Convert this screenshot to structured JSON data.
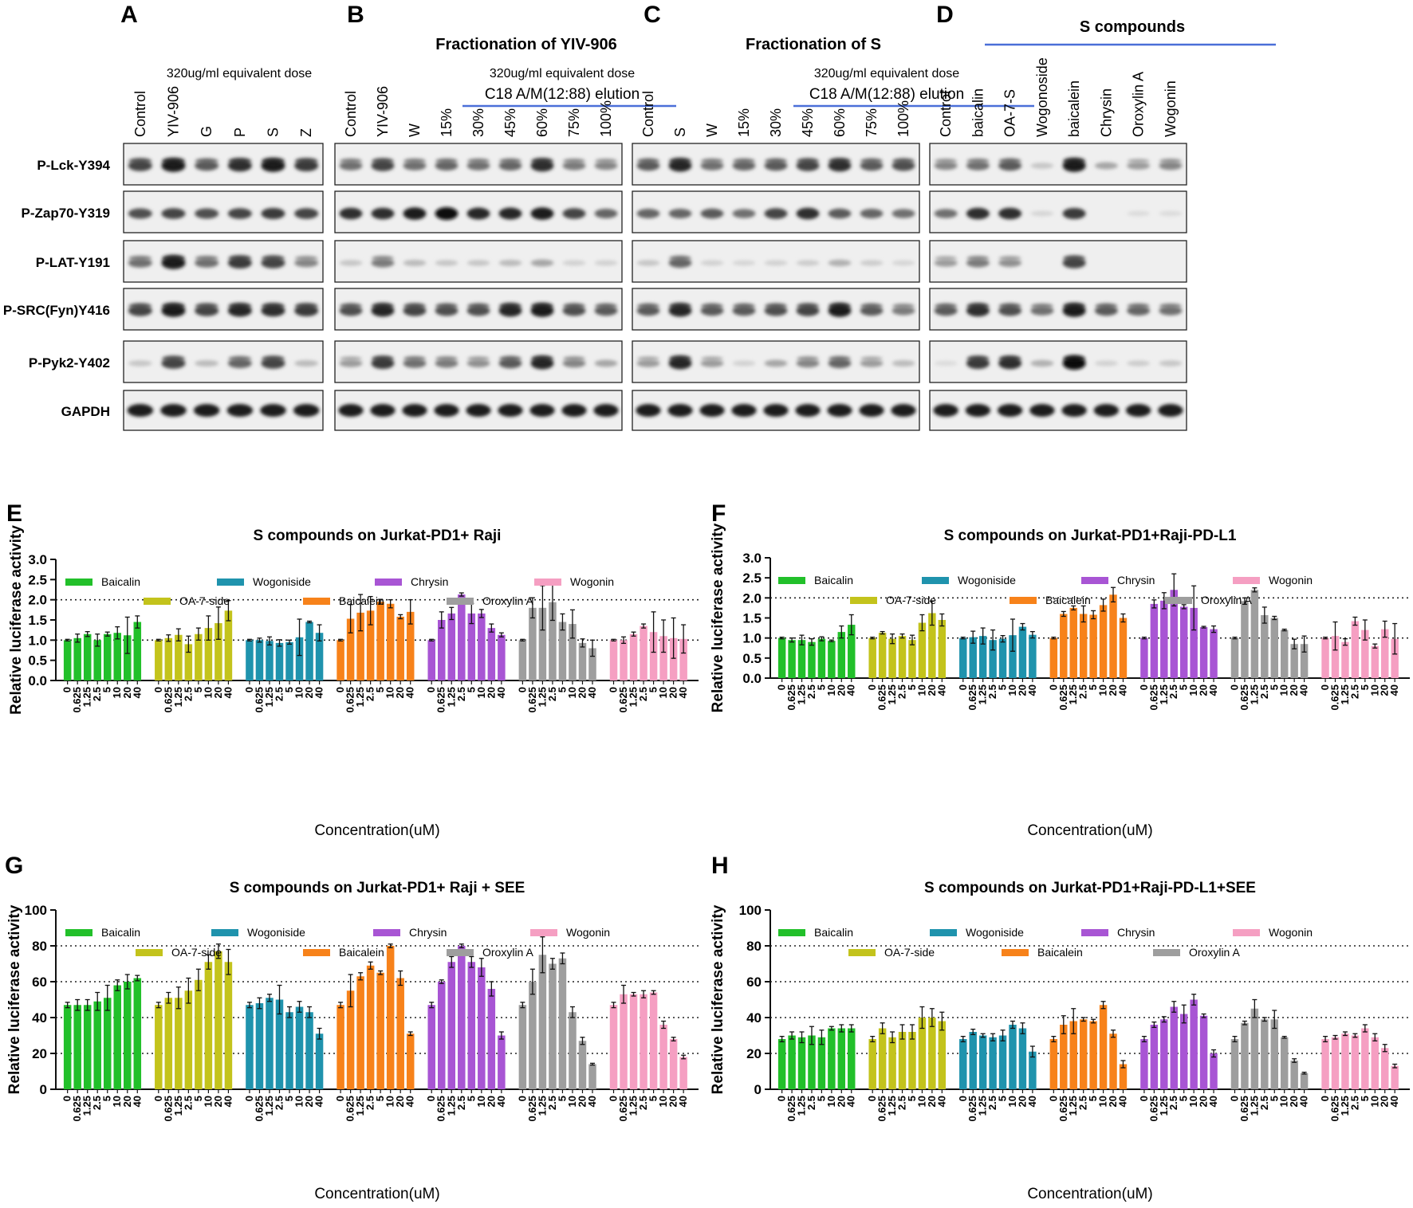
{
  "blots": {
    "lanes_letters": [
      "A",
      "B",
      "C",
      "D"
    ],
    "panelA": {
      "letter": "A",
      "dose": "320ug/ml equivalent dose",
      "lanes": [
        "Control",
        "YIV-906",
        "G",
        "P",
        "S",
        "Z"
      ]
    },
    "panelB": {
      "letter": "B",
      "title": "Fractionation  of YIV-906",
      "dose": "320ug/ml equivalent dose",
      "elution": "C18 A/M(12:88) elution",
      "lanes": [
        "Control",
        "YIV-906",
        "W",
        "15%",
        "30%",
        "45%",
        "60%",
        "75%",
        "100%"
      ]
    },
    "panelC": {
      "letter": "C",
      "title": "Fractionation  of S",
      "dose": "320ug/ml equivalent dose",
      "elution": "C18 A/M(12:88) elution",
      "lanes": [
        "Control",
        "S",
        "W",
        "15%",
        "30%",
        "45%",
        "60%",
        "75%",
        "100%"
      ]
    },
    "panelD": {
      "letter": "D",
      "title": "S compounds",
      "lanes": [
        "Control",
        "baicalin",
        "OA-7-S",
        "Wogonoside",
        "baicalein",
        "Chrysin",
        "Oroxylin A",
        "Wogonin"
      ]
    },
    "row_labels": [
      "P-Lck-Y394",
      "P-Zap70-Y319",
      "P-LAT-Y191",
      "P-SRC(Fyn)Y416",
      "P-Pyk2-Y402",
      "GAPDH"
    ],
    "intensity": {
      "A": [
        [
          0.75,
          0.95,
          0.65,
          0.85,
          0.95,
          0.8
        ],
        [
          0.7,
          0.75,
          0.7,
          0.75,
          0.8,
          0.75
        ],
        [
          0.55,
          0.95,
          0.55,
          0.8,
          0.75,
          0.45
        ],
        [
          0.75,
          0.95,
          0.75,
          0.9,
          0.85,
          0.8
        ],
        [
          0.15,
          0.75,
          0.2,
          0.6,
          0.75,
          0.2
        ],
        [
          0.95,
          0.95,
          0.95,
          0.95,
          0.95,
          0.95
        ]
      ],
      "B": [
        [
          0.55,
          0.75,
          0.55,
          0.6,
          0.55,
          0.6,
          0.85,
          0.5,
          0.45
        ],
        [
          0.85,
          0.85,
          0.95,
          1.0,
          0.9,
          0.9,
          0.95,
          0.75,
          0.6
        ],
        [
          0.15,
          0.5,
          0.2,
          0.15,
          0.15,
          0.2,
          0.3,
          0.1,
          0.1
        ],
        [
          0.7,
          0.9,
          0.75,
          0.7,
          0.7,
          0.9,
          0.95,
          0.7,
          0.65
        ],
        [
          0.35,
          0.8,
          0.55,
          0.5,
          0.4,
          0.65,
          0.9,
          0.45,
          0.3
        ],
        [
          0.95,
          0.95,
          0.95,
          0.95,
          0.95,
          0.95,
          0.95,
          0.95,
          0.95
        ]
      ],
      "C": [
        [
          0.65,
          0.9,
          0.55,
          0.6,
          0.65,
          0.75,
          0.85,
          0.65,
          0.7
        ],
        [
          0.6,
          0.6,
          0.65,
          0.55,
          0.75,
          0.85,
          0.65,
          0.6,
          0.55
        ],
        [
          0.15,
          0.6,
          0.1,
          0.08,
          0.1,
          0.12,
          0.25,
          0.12,
          0.08
        ],
        [
          0.65,
          0.9,
          0.65,
          0.65,
          0.7,
          0.75,
          0.95,
          0.65,
          0.5
        ],
        [
          0.35,
          0.9,
          0.35,
          0.1,
          0.3,
          0.45,
          0.6,
          0.35,
          0.2
        ],
        [
          0.95,
          0.95,
          0.95,
          0.95,
          0.95,
          0.95,
          0.95,
          0.95,
          0.95
        ]
      ],
      "D": [
        [
          0.45,
          0.55,
          0.65,
          0.15,
          0.95,
          0.3,
          0.35,
          0.45
        ],
        [
          0.55,
          0.85,
          0.85,
          0.08,
          0.8,
          0.0,
          0.05,
          0.05
        ],
        [
          0.35,
          0.5,
          0.4,
          0.0,
          0.75,
          0.0,
          0.0,
          0.0
        ],
        [
          0.65,
          0.85,
          0.7,
          0.55,
          0.95,
          0.65,
          0.6,
          0.55
        ],
        [
          0.05,
          0.8,
          0.85,
          0.25,
          1.0,
          0.1,
          0.12,
          0.15
        ],
        [
          0.95,
          0.95,
          0.95,
          0.95,
          0.95,
          0.95,
          0.95,
          0.95
        ]
      ]
    }
  },
  "chart_data": [
    {
      "type": "bar",
      "panel": "E",
      "title": "S compounds on Jurkat-PD1+ Raji",
      "xlabel": "Concentration(uM)",
      "ylabel": "Relative luciferase activity",
      "ylim": [
        0,
        3.0
      ],
      "yticks": [
        "0.0",
        "0.5",
        "1.0",
        "1.5",
        "2.0",
        "2.5",
        "3.0"
      ],
      "yticks_values": [
        0,
        0.5,
        1.0,
        1.5,
        2.0,
        2.5,
        3.0
      ],
      "dotted_lines": [
        1.0,
        2.0
      ],
      "categories": [
        "0",
        "0.625",
        "1.25",
        "2.5",
        "5",
        "10",
        "20",
        "40"
      ],
      "series": [
        {
          "name": "Baicalin",
          "color": "#22c02a",
          "values": [
            1.0,
            1.05,
            1.15,
            1.0,
            1.15,
            1.18,
            1.12,
            1.45
          ],
          "errors": [
            0.02,
            0.1,
            0.06,
            0.15,
            0.05,
            0.15,
            0.45,
            0.15
          ]
        },
        {
          "name": "OA-7-side",
          "color": "#c3c31c",
          "values": [
            1.0,
            1.05,
            1.13,
            0.9,
            1.15,
            1.3,
            1.42,
            1.73
          ],
          "errors": [
            0.02,
            0.08,
            0.15,
            0.2,
            0.15,
            0.3,
            0.4,
            0.25
          ]
        },
        {
          "name": "Wogoniside",
          "color": "#1f93ad",
          "values": [
            1.0,
            1.0,
            0.98,
            0.93,
            0.95,
            1.07,
            1.45,
            1.18
          ],
          "errors": [
            0.02,
            0.05,
            0.1,
            0.08,
            0.05,
            0.45,
            0.02,
            0.2
          ]
        },
        {
          "name": "Baicalein",
          "color": "#f7821a",
          "values": [
            1.0,
            1.53,
            1.68,
            1.73,
            1.95,
            1.9,
            1.58,
            1.7
          ],
          "errors": [
            0.02,
            0.35,
            0.45,
            0.35,
            0.06,
            0.1,
            0.05,
            0.3
          ]
        },
        {
          "name": "Chrysin",
          "color": "#a855d4",
          "values": [
            1.0,
            1.5,
            1.66,
            2.13,
            1.66,
            1.66,
            1.3,
            1.13
          ],
          "errors": [
            0.02,
            0.2,
            0.15,
            0.04,
            0.25,
            0.1,
            0.1,
            0.05
          ]
        },
        {
          "name": "Oroxylin A",
          "color": "#9e9e9e",
          "values": [
            1.0,
            1.8,
            1.8,
            1.94,
            1.45,
            1.4,
            0.93,
            0.8
          ],
          "errors": [
            0.02,
            0.25,
            0.55,
            0.45,
            0.2,
            0.35,
            0.1,
            0.2
          ]
        },
        {
          "name": "Wogonin",
          "color": "#f59fc2",
          "values": [
            1.0,
            1.0,
            1.15,
            1.35,
            1.2,
            1.1,
            1.05,
            1.03
          ],
          "errors": [
            0.02,
            0.08,
            0.05,
            0.05,
            0.5,
            0.4,
            0.5,
            0.35
          ]
        }
      ]
    },
    {
      "type": "bar",
      "panel": "F",
      "title": "S compounds on Jurkat-PD1+Raji-PD-L1",
      "xlabel": "Concentration(uM)",
      "ylabel": "Relative luciferase activity",
      "ylim": [
        0,
        3.0
      ],
      "yticks": [
        "0.0",
        "0.5",
        "1.0",
        "1.5",
        "2.0",
        "2.5",
        "3.0"
      ],
      "yticks_values": [
        0,
        0.5,
        1.0,
        1.5,
        2.0,
        2.5,
        3.0
      ],
      "dotted_lines": [
        1.0,
        2.0
      ],
      "categories": [
        "0",
        "0.625",
        "1.25",
        "2.5",
        "5",
        "10",
        "20",
        "40"
      ],
      "series": [
        {
          "name": "Baicalin",
          "color": "#22c02a",
          "values": [
            1.0,
            0.95,
            0.95,
            0.9,
            0.98,
            0.93,
            1.15,
            1.33
          ],
          "errors": [
            0.02,
            0.05,
            0.12,
            0.08,
            0.05,
            0.02,
            0.15,
            0.25
          ]
        },
        {
          "name": "OA-7-side",
          "color": "#c3c31c",
          "values": [
            1.0,
            1.13,
            0.98,
            1.05,
            0.95,
            1.38,
            1.62,
            1.45
          ],
          "errors": [
            0.02,
            0.03,
            0.12,
            0.05,
            0.12,
            0.2,
            0.3,
            0.15
          ]
        },
        {
          "name": "Wogoniside",
          "color": "#1f93ad",
          "values": [
            1.0,
            1.02,
            1.05,
            0.95,
            0.98,
            1.07,
            1.28,
            1.08
          ],
          "errors": [
            0.02,
            0.15,
            0.2,
            0.25,
            0.08,
            0.4,
            0.08,
            0.08
          ]
        },
        {
          "name": "Baicalein",
          "color": "#f7821a",
          "values": [
            1.0,
            1.6,
            1.75,
            1.6,
            1.58,
            1.82,
            2.08,
            1.5
          ],
          "errors": [
            0.02,
            0.06,
            0.05,
            0.2,
            0.1,
            0.15,
            0.18,
            0.1
          ]
        },
        {
          "name": "Chrysin",
          "color": "#a855d4",
          "values": [
            1.0,
            1.85,
            1.93,
            2.2,
            1.78,
            1.75,
            1.27,
            1.22
          ],
          "errors": [
            0.02,
            0.1,
            0.2,
            0.4,
            0.05,
            0.55,
            0.02,
            0.08
          ]
        },
        {
          "name": "Oroxylin A",
          "color": "#9e9e9e",
          "values": [
            1.0,
            1.92,
            2.2,
            1.57,
            1.5,
            1.2,
            0.85,
            0.85
          ],
          "errors": [
            0.02,
            0.08,
            0.05,
            0.2,
            0.04,
            0.02,
            0.12,
            0.2
          ]
        },
        {
          "name": "Wogonin",
          "color": "#f59fc2",
          "values": [
            1.0,
            1.05,
            0.9,
            1.42,
            1.2,
            0.8,
            1.22,
            0.98
          ],
          "errors": [
            0.02,
            0.35,
            0.08,
            0.1,
            0.25,
            0.05,
            0.2,
            0.38
          ]
        }
      ]
    },
    {
      "type": "bar",
      "panel": "G",
      "title": "S compounds on Jurkat-PD1+ Raji + SEE",
      "xlabel": "Concentration(uM)",
      "ylabel": "Relative luciferase activity",
      "ylim": [
        0,
        100
      ],
      "yticks": [
        "0",
        "20",
        "40",
        "60",
        "80",
        "100"
      ],
      "yticks_values": [
        0,
        20,
        40,
        60,
        80,
        100
      ],
      "dotted_lines": [
        20,
        40,
        60,
        80
      ],
      "categories": [
        "0",
        "0.625",
        "1.25",
        "2.5",
        "5",
        "10",
        "20",
        "40"
      ],
      "series": [
        {
          "name": "Baicalin",
          "color": "#22c02a",
          "values": [
            47,
            47,
            47,
            49,
            51,
            58,
            60,
            62
          ],
          "errors": [
            1.5,
            3,
            3,
            5,
            7,
            3,
            4,
            1.5
          ]
        },
        {
          "name": "OA-7-side",
          "color": "#c3c31c",
          "values": [
            47,
            51,
            51,
            55,
            61,
            71,
            77,
            71
          ],
          "errors": [
            1.5,
            3,
            6,
            7,
            6,
            4,
            4,
            7
          ]
        },
        {
          "name": "Wogoniside",
          "color": "#1f93ad",
          "values": [
            47,
            48,
            51,
            50,
            43,
            46,
            43,
            31
          ],
          "errors": [
            1.5,
            3,
            2,
            8,
            3,
            3,
            3,
            3
          ]
        },
        {
          "name": "Baicalein",
          "color": "#f7821a",
          "values": [
            47,
            55,
            63,
            69,
            65,
            80,
            62,
            31
          ],
          "errors": [
            1.5,
            9,
            2,
            2,
            1,
            1,
            4,
            1
          ]
        },
        {
          "name": "Chrysin",
          "color": "#a855d4",
          "values": [
            47,
            60,
            71,
            80,
            71,
            68,
            56,
            30
          ],
          "errors": [
            1.5,
            1,
            3,
            1,
            3,
            5,
            4,
            2
          ]
        },
        {
          "name": "Oroxylin A",
          "color": "#9e9e9e",
          "values": [
            47,
            60,
            75,
            70,
            73,
            43,
            27,
            14
          ],
          "errors": [
            1.5,
            7,
            10,
            3,
            3,
            3,
            2,
            0.5
          ]
        },
        {
          "name": "Wogonin",
          "color": "#f59fc2",
          "values": [
            47,
            53,
            53,
            53,
            54,
            36,
            28,
            18
          ],
          "errors": [
            1.5,
            5,
            1,
            2,
            1,
            2,
            1,
            1
          ]
        }
      ]
    },
    {
      "type": "bar",
      "panel": "H",
      "title": "S compounds on Jurkat-PD1+Raji-PD-L1+SEE",
      "xlabel": "Concentration(uM)",
      "ylabel": "Relative luciferase activity",
      "ylim": [
        0,
        100
      ],
      "yticks": [
        "0",
        "20",
        "40",
        "60",
        "80",
        "100"
      ],
      "yticks_values": [
        0,
        20,
        40,
        60,
        80,
        100
      ],
      "dotted_lines": [
        20,
        40,
        60,
        80
      ],
      "categories": [
        "0",
        "0.625",
        "1.25",
        "2.5",
        "5",
        "10",
        "20",
        "40"
      ],
      "series": [
        {
          "name": "Baicalin",
          "color": "#22c02a",
          "values": [
            28,
            30,
            29,
            30,
            29,
            34,
            34,
            34
          ],
          "errors": [
            1.5,
            2,
            3,
            5,
            4,
            1,
            2,
            2
          ]
        },
        {
          "name": "OA-7-side",
          "color": "#c3c31c",
          "values": [
            28,
            34,
            29,
            32,
            32,
            40,
            40,
            38
          ],
          "errors": [
            1.5,
            3,
            3,
            4,
            4,
            6,
            5,
            5
          ]
        },
        {
          "name": "Wogoniside",
          "color": "#1f93ad",
          "values": [
            28,
            32,
            30,
            29,
            30,
            36,
            34,
            21
          ],
          "errors": [
            1.5,
            1.5,
            1,
            2,
            3,
            2,
            3,
            3
          ]
        },
        {
          "name": "Baicalein",
          "color": "#f7821a",
          "values": [
            28,
            36,
            38,
            39,
            38,
            47,
            31,
            14
          ],
          "errors": [
            1.5,
            5,
            7,
            1,
            1,
            2,
            2,
            2
          ]
        },
        {
          "name": "Chrysin",
          "color": "#a855d4",
          "values": [
            28,
            36,
            39,
            46,
            42,
            50,
            41,
            20
          ],
          "errors": [
            1.5,
            1.5,
            1.5,
            3,
            5,
            3,
            1,
            2
          ]
        },
        {
          "name": "Oroxylin A",
          "color": "#9e9e9e",
          "values": [
            28,
            37,
            45,
            39,
            39,
            29,
            16,
            9
          ],
          "errors": [
            1.5,
            1,
            5,
            1,
            5,
            0.5,
            1,
            0.5
          ]
        },
        {
          "name": "Wogonin",
          "color": "#f59fc2",
          "values": [
            28,
            29,
            31,
            30,
            34,
            29,
            23,
            13
          ],
          "errors": [
            1.5,
            1,
            1,
            1,
            2,
            2,
            2,
            1
          ]
        }
      ]
    }
  ]
}
